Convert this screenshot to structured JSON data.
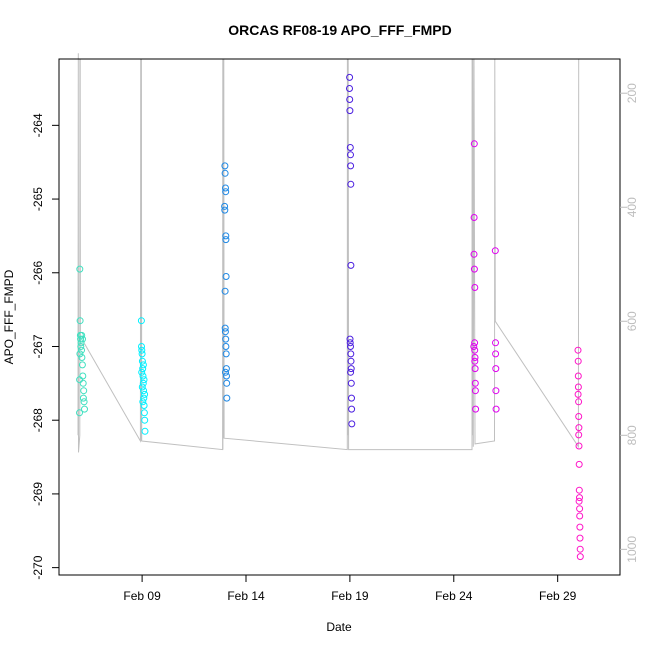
{
  "chart_data": {
    "type": "scatter",
    "title": "ORCAS RF08-19 APO_FFF_FMPD",
    "xlabel": "Date",
    "ylabel": "APO_FFF_FMPD",
    "x_axis": {
      "type": "date",
      "range": [
        "2016-02-05",
        "2016-03-03"
      ],
      "ticks": [
        "2016-02-09",
        "2016-02-14",
        "2016-02-19",
        "2016-02-24",
        "2016-02-29"
      ],
      "tick_labels": [
        "Feb 09",
        "Feb 14",
        "Feb 19",
        "Feb 24",
        "Feb 29"
      ]
    },
    "y_axis": {
      "range": [
        -270.1,
        -263.1
      ],
      "ticks": [
        -270,
        -269,
        -268,
        -267,
        -266,
        -265,
        -264
      ],
      "tick_labels": [
        "-270",
        "-269",
        "-268",
        "-267",
        "-266",
        "-265",
        "-264"
      ]
    },
    "y2_axis": {
      "range": [
        1045,
        140
      ],
      "ticks": [
        200,
        400,
        600,
        800,
        1000
      ],
      "tick_labels": [
        "200",
        "400",
        "600",
        "800",
        "1000"
      ]
    },
    "grid": false,
    "series": [
      {
        "color": "#40E0C0",
        "points": [
          [
            "2016-02-06T00:00",
            -265.95
          ],
          [
            "2016-02-06T00:20",
            -266.65
          ],
          [
            "2016-02-06T00:40",
            -266.85
          ],
          [
            "2016-02-06T01:00",
            -266.9
          ],
          [
            "2016-02-06T01:10",
            -267.0
          ],
          [
            "2016-02-06T01:30",
            -266.95
          ],
          [
            "2016-02-06T02:00",
            -267.05
          ],
          [
            "2016-02-06T02:30",
            -267.15
          ],
          [
            "2016-02-06T03:00",
            -267.25
          ],
          [
            "2016-02-06T03:30",
            -267.4
          ],
          [
            "2016-02-06T04:00",
            -267.5
          ],
          [
            "2016-02-06T04:30",
            -267.6
          ],
          [
            "2016-02-06T05:00",
            -267.75
          ],
          [
            "2016-02-06T05:30",
            -267.85
          ],
          [
            "2016-02-05T23:40",
            -267.9
          ],
          [
            "2016-02-05T23:50",
            -267.45
          ],
          [
            "2016-02-06T00:10",
            -267.1
          ],
          [
            "2016-02-06T02:10",
            -266.85
          ],
          [
            "2016-02-06T03:10",
            -266.9
          ],
          [
            "2016-02-06T04:10",
            -267.7
          ]
        ]
      },
      {
        "color": "#00F0FF",
        "points": [
          [
            "2016-02-08T23:10",
            -266.65
          ],
          [
            "2016-02-08T23:20",
            -267.0
          ],
          [
            "2016-02-08T23:40",
            -267.05
          ],
          [
            "2016-02-09T00:00",
            -267.1
          ],
          [
            "2016-02-09T00:20",
            -267.2
          ],
          [
            "2016-02-09T00:40",
            -267.3
          ],
          [
            "2016-02-09T01:00",
            -267.4
          ],
          [
            "2016-02-09T01:20",
            -267.5
          ],
          [
            "2016-02-09T01:40",
            -267.6
          ],
          [
            "2016-02-09T02:00",
            -267.7
          ],
          [
            "2016-02-09T02:20",
            -267.8
          ],
          [
            "2016-02-09T02:40",
            -267.9
          ],
          [
            "2016-02-09T03:00",
            -268.0
          ],
          [
            "2016-02-09T03:20",
            -268.15
          ],
          [
            "2016-02-08T23:30",
            -267.35
          ],
          [
            "2016-02-09T00:10",
            -267.55
          ],
          [
            "2016-02-09T00:50",
            -267.75
          ],
          [
            "2016-02-09T01:30",
            -267.25
          ],
          [
            "2016-02-09T02:10",
            -267.45
          ],
          [
            "2016-02-09T02:50",
            -267.65
          ]
        ]
      },
      {
        "color": "#1E88E5",
        "points": [
          [
            "2016-02-12T23:40",
            -264.55
          ],
          [
            "2016-02-12T23:50",
            -264.65
          ],
          [
            "2016-02-13T00:20",
            -264.85
          ],
          [
            "2016-02-13T00:30",
            -264.9
          ],
          [
            "2016-02-12T23:20",
            -265.1
          ],
          [
            "2016-02-12T23:30",
            -265.15
          ],
          [
            "2016-02-13T00:40",
            -265.5
          ],
          [
            "2016-02-13T00:50",
            -265.55
          ],
          [
            "2016-02-13T01:00",
            -266.05
          ],
          [
            "2016-02-12T23:50",
            -266.25
          ],
          [
            "2016-02-13T00:00",
            -266.75
          ],
          [
            "2016-02-13T00:10",
            -266.8
          ],
          [
            "2016-02-13T00:30",
            -266.9
          ],
          [
            "2016-02-13T00:50",
            -267.0
          ],
          [
            "2016-02-13T01:10",
            -267.1
          ],
          [
            "2016-02-13T01:20",
            -267.3
          ],
          [
            "2016-02-13T01:30",
            -267.4
          ],
          [
            "2016-02-13T01:40",
            -267.5
          ],
          [
            "2016-02-13T01:50",
            -267.7
          ],
          [
            "2016-02-13T00:20",
            -267.35
          ]
        ]
      },
      {
        "color": "#4B1FE0",
        "points": [
          [
            "2016-02-18T23:40",
            -263.35
          ],
          [
            "2016-02-18T23:30",
            -263.5
          ],
          [
            "2016-02-18T23:50",
            -263.65
          ],
          [
            "2016-02-19T00:00",
            -263.8
          ],
          [
            "2016-02-19T00:30",
            -264.3
          ],
          [
            "2016-02-19T00:40",
            -264.4
          ],
          [
            "2016-02-19T00:50",
            -264.55
          ],
          [
            "2016-02-19T01:00",
            -264.8
          ],
          [
            "2016-02-19T01:10",
            -265.9
          ],
          [
            "2016-02-19T00:10",
            -266.9
          ],
          [
            "2016-02-19T00:20",
            -266.95
          ],
          [
            "2016-02-19T00:40",
            -267.0
          ],
          [
            "2016-02-19T01:00",
            -267.1
          ],
          [
            "2016-02-19T01:20",
            -267.2
          ],
          [
            "2016-02-19T01:30",
            -267.3
          ],
          [
            "2016-02-19T01:40",
            -267.5
          ],
          [
            "2016-02-19T01:50",
            -267.7
          ],
          [
            "2016-02-19T02:00",
            -267.85
          ],
          [
            "2016-02-19T02:10",
            -268.05
          ],
          [
            "2016-02-19T00:50",
            -267.35
          ]
        ]
      },
      {
        "color": "#E000F0",
        "points": [
          [
            "2016-02-24T23:40",
            -264.25
          ],
          [
            "2016-02-24T23:30",
            -265.25
          ],
          [
            "2016-02-24T23:20",
            -265.75
          ],
          [
            "2016-02-24T23:50",
            -265.95
          ],
          [
            "2016-02-25T00:20",
            -266.2
          ],
          [
            "2016-02-25T00:00",
            -266.95
          ],
          [
            "2016-02-25T00:10",
            -267.05
          ],
          [
            "2016-02-25T00:30",
            -267.15
          ],
          [
            "2016-02-25T00:40",
            -267.3
          ],
          [
            "2016-02-25T00:50",
            -267.5
          ],
          [
            "2016-02-25T01:00",
            -267.6
          ],
          [
            "2016-02-25T01:10",
            -267.85
          ],
          [
            "2016-02-24T23:10",
            -267.0
          ],
          [
            "2016-02-25T00:20",
            -267.2
          ],
          [
            "2016-02-26T00:00",
            -265.7
          ],
          [
            "2016-02-26T00:10",
            -266.95
          ],
          [
            "2016-02-26T00:20",
            -267.1
          ],
          [
            "2016-02-26T00:30",
            -267.3
          ],
          [
            "2016-02-26T00:40",
            -267.6
          ],
          [
            "2016-02-26T00:50",
            -267.85
          ]
        ]
      },
      {
        "color": "#FF14C8",
        "points": [
          [
            "2016-02-29T23:30",
            -267.05
          ],
          [
            "2016-02-29T23:40",
            -267.2
          ],
          [
            "2016-02-29T23:50",
            -267.4
          ],
          [
            "2016-03-01T00:00",
            -267.55
          ],
          [
            "2016-03-01T00:10",
            -267.75
          ],
          [
            "2016-03-01T00:20",
            -267.95
          ],
          [
            "2016-03-01T00:30",
            -268.1
          ],
          [
            "2016-03-01T00:40",
            -268.35
          ],
          [
            "2016-03-01T00:50",
            -268.6
          ],
          [
            "2016-03-01T01:00",
            -268.95
          ],
          [
            "2016-03-01T01:10",
            -269.05
          ],
          [
            "2016-03-01T01:20",
            -269.2
          ],
          [
            "2016-03-01T01:30",
            -269.3
          ],
          [
            "2016-03-01T01:40",
            -269.45
          ],
          [
            "2016-03-01T01:50",
            -269.6
          ],
          [
            "2016-03-01T02:00",
            -269.75
          ],
          [
            "2016-03-01T02:10",
            -269.85
          ],
          [
            "2016-02-29T23:35",
            -267.65
          ],
          [
            "2016-03-01T00:15",
            -268.2
          ],
          [
            "2016-03-01T00:45",
            -269.1
          ]
        ]
      }
    ],
    "altitude_trace": {
      "color": "#c0c0c0",
      "points": [
        [
          "2016-02-05T22:00",
          800
        ],
        [
          "2016-02-05T22:15",
          130
        ],
        [
          "2016-02-05T22:30",
          830
        ],
        [
          "2016-02-06T00:00",
          800
        ],
        [
          "2016-02-06T00:10",
          140
        ],
        [
          "2016-02-06T00:20",
          650
        ],
        [
          "2016-02-06T00:30",
          140
        ],
        [
          "2016-02-06T00:40",
          640
        ],
        [
          "2016-02-06T05:50",
          640
        ],
        [
          "2016-02-08T22:00",
          810
        ],
        [
          "2016-02-08T22:20",
          140
        ],
        [
          "2016-02-08T22:40",
          810
        ],
        [
          "2016-02-08T23:10",
          140
        ],
        [
          "2016-02-08T23:30",
          810
        ],
        [
          "2016-02-12T21:00",
          825
        ],
        [
          "2016-02-12T21:10",
          140
        ],
        [
          "2016-02-12T21:20",
          825
        ],
        [
          "2016-02-12T21:40",
          140
        ],
        [
          "2016-02-12T22:00",
          805
        ],
        [
          "2016-02-12T22:20",
          140
        ],
        [
          "2016-02-12T22:40",
          805
        ],
        [
          "2016-02-18T21:00",
          825
        ],
        [
          "2016-02-18T21:10",
          140
        ],
        [
          "2016-02-18T21:30",
          800
        ],
        [
          "2016-02-18T22:00",
          140
        ],
        [
          "2016-02-18T22:30",
          825
        ],
        [
          "2016-02-24T21:00",
          825
        ],
        [
          "2016-02-24T21:10",
          140
        ],
        [
          "2016-02-24T21:30",
          800
        ],
        [
          "2016-02-24T22:00",
          140
        ],
        [
          "2016-02-24T22:30",
          820
        ],
        [
          "2016-02-24T23:20",
          140
        ],
        [
          "2016-02-25T00:30",
          815
        ],
        [
          "2016-02-25T23:00",
          810
        ],
        [
          "2016-02-25T23:20",
          140
        ],
        [
          "2016-02-26T00:00",
          600
        ],
        [
          "2016-03-01T00:00",
          820
        ],
        [
          "2016-03-01T00:20",
          140
        ]
      ]
    }
  }
}
